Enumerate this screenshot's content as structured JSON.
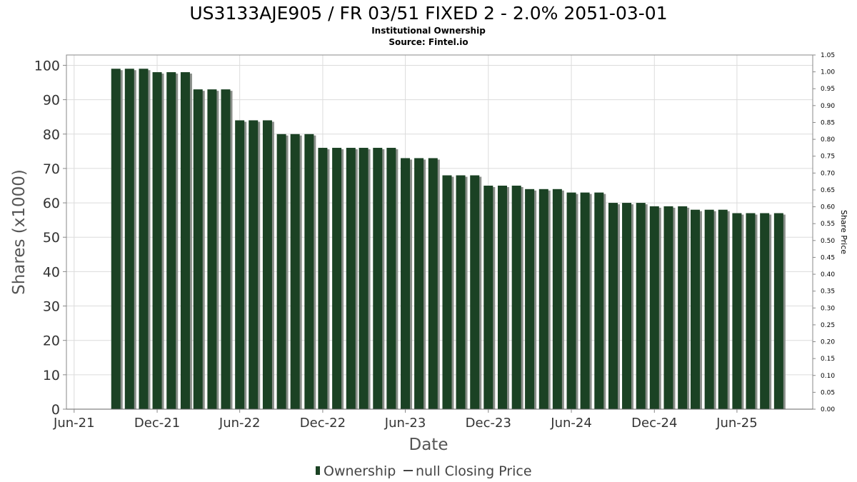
{
  "title": "US3133AJE905 / FR 03/51 FIXED 2 - 2.0% 2051-03-01",
  "subtitle_line1": "Institutional Ownership",
  "subtitle_line2": "Source: Fintel.io",
  "colors": {
    "bar": "#1b4224",
    "bar_shadow": "#8a8f8a",
    "grid": "#dcdcdc",
    "axis": "#888888"
  },
  "legend": {
    "ownership_label": "Ownership",
    "price_label": "null Closing Price"
  },
  "chart_data": {
    "type": "bar",
    "title": "US3133AJE905 / FR 03/51 FIXED 2 - 2.0% 2051-03-01",
    "subtitle": "Institutional Ownership",
    "source": "Source: Fintel.io",
    "xlabel": "Date",
    "ylabel": "Shares (x1000)",
    "y2label": "Share Price",
    "ylim": [
      0,
      103
    ],
    "y2lim": [
      0,
      1.05
    ],
    "yticks": [
      0,
      10,
      20,
      30,
      40,
      50,
      60,
      70,
      80,
      90,
      100
    ],
    "y2ticks": [
      "0.00",
      "0.05",
      "0.10",
      "0.15",
      "0.20",
      "0.25",
      "0.30",
      "0.35",
      "0.40",
      "0.45",
      "0.50",
      "0.55",
      "0.60",
      "0.65",
      "0.70",
      "0.75",
      "0.80",
      "0.85",
      "0.90",
      "0.95",
      "1.00",
      "1.05"
    ],
    "xlim": [
      "2021-05-15",
      "2025-11-15"
    ],
    "xticks": [
      {
        "label": "Jun-21",
        "date": "2021-06-01"
      },
      {
        "label": "Dec-21",
        "date": "2021-12-01"
      },
      {
        "label": "Jun-22",
        "date": "2022-06-01"
      },
      {
        "label": "Dec-22",
        "date": "2022-12-01"
      },
      {
        "label": "Jun-23",
        "date": "2023-06-01"
      },
      {
        "label": "Dec-23",
        "date": "2023-12-01"
      },
      {
        "label": "Jun-24",
        "date": "2024-06-01"
      },
      {
        "label": "Dec-24",
        "date": "2024-12-01"
      },
      {
        "label": "Jun-25",
        "date": "2025-06-01"
      }
    ],
    "grid": true,
    "legend_position": "bottom",
    "series": [
      {
        "name": "Ownership",
        "points": [
          {
            "x": "2021-09-01",
            "y": 99
          },
          {
            "x": "2021-10-01",
            "y": 99
          },
          {
            "x": "2021-11-01",
            "y": 99
          },
          {
            "x": "2021-12-01",
            "y": 98
          },
          {
            "x": "2022-01-01",
            "y": 98
          },
          {
            "x": "2022-02-01",
            "y": 98
          },
          {
            "x": "2022-03-01",
            "y": 93
          },
          {
            "x": "2022-04-01",
            "y": 93
          },
          {
            "x": "2022-05-01",
            "y": 93
          },
          {
            "x": "2022-06-01",
            "y": 84
          },
          {
            "x": "2022-07-01",
            "y": 84
          },
          {
            "x": "2022-08-01",
            "y": 84
          },
          {
            "x": "2022-09-01",
            "y": 80
          },
          {
            "x": "2022-10-01",
            "y": 80
          },
          {
            "x": "2022-11-01",
            "y": 80
          },
          {
            "x": "2022-12-01",
            "y": 76
          },
          {
            "x": "2023-01-01",
            "y": 76
          },
          {
            "x": "2023-02-01",
            "y": 76
          },
          {
            "x": "2023-03-01",
            "y": 76
          },
          {
            "x": "2023-04-01",
            "y": 76
          },
          {
            "x": "2023-05-01",
            "y": 76
          },
          {
            "x": "2023-06-01",
            "y": 73
          },
          {
            "x": "2023-07-01",
            "y": 73
          },
          {
            "x": "2023-08-01",
            "y": 73
          },
          {
            "x": "2023-09-01",
            "y": 68
          },
          {
            "x": "2023-10-01",
            "y": 68
          },
          {
            "x": "2023-11-01",
            "y": 68
          },
          {
            "x": "2023-12-01",
            "y": 65
          },
          {
            "x": "2024-01-01",
            "y": 65
          },
          {
            "x": "2024-02-01",
            "y": 65
          },
          {
            "x": "2024-03-01",
            "y": 64
          },
          {
            "x": "2024-04-01",
            "y": 64
          },
          {
            "x": "2024-05-01",
            "y": 64
          },
          {
            "x": "2024-06-01",
            "y": 63
          },
          {
            "x": "2024-07-01",
            "y": 63
          },
          {
            "x": "2024-08-01",
            "y": 63
          },
          {
            "x": "2024-09-01",
            "y": 60
          },
          {
            "x": "2024-10-01",
            "y": 60
          },
          {
            "x": "2024-11-01",
            "y": 60
          },
          {
            "x": "2024-12-01",
            "y": 59
          },
          {
            "x": "2025-01-01",
            "y": 59
          },
          {
            "x": "2025-02-01",
            "y": 59
          },
          {
            "x": "2025-03-01",
            "y": 58
          },
          {
            "x": "2025-04-01",
            "y": 58
          },
          {
            "x": "2025-05-01",
            "y": 58
          },
          {
            "x": "2025-06-01",
            "y": 57
          },
          {
            "x": "2025-07-01",
            "y": 57
          },
          {
            "x": "2025-08-01",
            "y": 57
          },
          {
            "x": "2025-09-01",
            "y": 57
          }
        ]
      },
      {
        "name": "null Closing Price",
        "points": []
      }
    ]
  }
}
